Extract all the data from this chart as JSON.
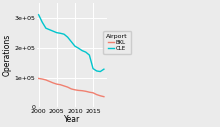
{
  "years": [
    2000,
    2001,
    2002,
    2003,
    2004,
    2005,
    2006,
    2007,
    2008,
    2009,
    2010,
    2011,
    2012,
    2013,
    2014,
    2015,
    2016,
    2017,
    2018
  ],
  "BKL": [
    97000,
    95000,
    92000,
    87000,
    82000,
    78000,
    76000,
    72000,
    68000,
    62000,
    59000,
    57000,
    56000,
    54000,
    51000,
    49000,
    43000,
    39000,
    36000
  ],
  "CLE": [
    310000,
    285000,
    265000,
    260000,
    255000,
    250000,
    248000,
    245000,
    235000,
    220000,
    205000,
    198000,
    190000,
    185000,
    175000,
    130000,
    122000,
    120000,
    128000
  ],
  "BKL_color": "#f08070",
  "CLE_color": "#00c5cd",
  "bg_color": "#ebebeb",
  "panel_bg": "#ebebeb",
  "grid_color": "#ffffff",
  "xlabel": "Year",
  "ylabel": "Operations",
  "legend_title": "Airport",
  "ylim": [
    0,
    350000
  ],
  "yticks": [
    0,
    100000,
    200000,
    300000
  ],
  "xticks": [
    2000,
    2005,
    2010,
    2015
  ]
}
